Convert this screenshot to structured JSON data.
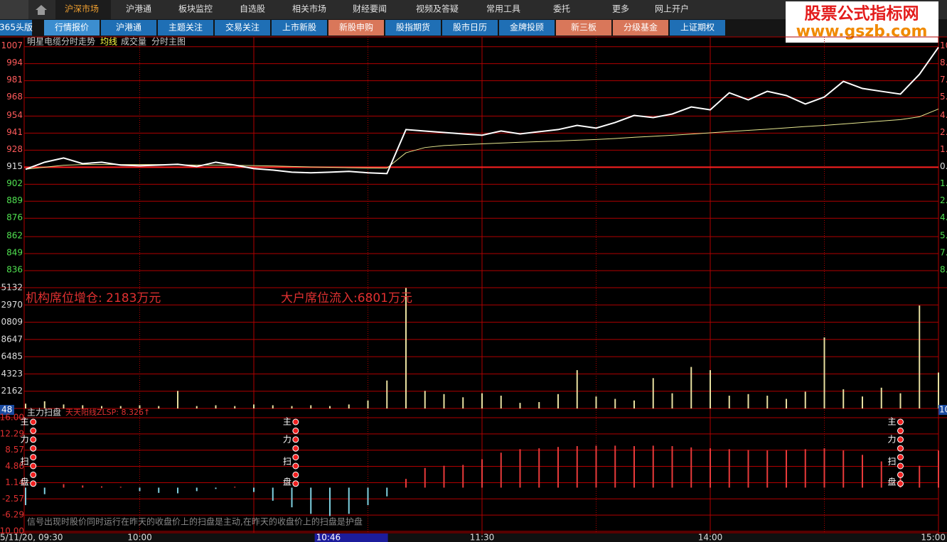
{
  "menu": [
    "沪深市场",
    "沪港通",
    "板块监控",
    "自选股",
    "相关市场",
    "财经要闻",
    "视频及答疑",
    "常用工具",
    "委托",
    "更多",
    "网上开户"
  ],
  "tabs": [
    "365头版",
    "行情报价",
    "沪港通",
    "主题关注",
    "交易关注",
    "上市新股",
    "新股申购",
    "股指期货",
    "股市日历",
    "金牌投顾",
    "新三板",
    "分级基金",
    "上证期权"
  ],
  "logo": {
    "title": "股票公式指标网",
    "url": "www.gszb.com"
  },
  "chart_data": {
    "type": "line",
    "title": "明星电缆分时走势",
    "legend": [
      "均线",
      "成交量",
      "分时主图"
    ],
    "x": [
      "09:30",
      "09:35",
      "09:40",
      "09:45",
      "09:50",
      "09:55",
      "10:00",
      "10:05",
      "10:10",
      "10:15",
      "10:20",
      "10:25",
      "10:30",
      "10:35",
      "10:40",
      "10:45",
      "10:50",
      "10:55",
      "11:00",
      "11:05",
      "11:10",
      "11:15",
      "11:20",
      "11:25",
      "11:30",
      "13:05",
      "13:10",
      "13:15",
      "13:20",
      "13:25",
      "13:30",
      "13:35",
      "13:40",
      "13:45",
      "13:50",
      "13:55",
      "14:00",
      "14:05",
      "14:10",
      "14:15",
      "14:20",
      "14:25",
      "14:30",
      "14:35",
      "14:40",
      "14:45",
      "14:50",
      "14:55",
      "15:00"
    ],
    "xticks": [
      {
        "value": "09:30",
        "label": "5/11/20, 09:30"
      },
      "10:00",
      "11:30",
      "14:00",
      "15:00"
    ],
    "cursor": "10:46",
    "price": {
      "color": "#ffffff",
      "values": [
        913.4,
        918.8,
        922.0,
        917.7,
        918.8,
        916.6,
        916.1,
        916.6,
        917.2,
        915.5,
        918.8,
        916.6,
        913.9,
        912.8,
        911.2,
        910.7,
        911.2,
        911.8,
        910.7,
        910.1,
        943.7,
        942.6,
        941.5,
        940.4,
        939.4,
        942.6,
        940.4,
        942.1,
        943.7,
        946.9,
        944.8,
        949.1,
        954.5,
        952.9,
        955.6,
        961.0,
        958.8,
        971.8,
        966.4,
        972.9,
        969.7,
        963.2,
        968.6,
        980.5,
        975.1,
        972.9,
        970.8,
        985.9,
        1006.5
      ]
    },
    "average": {
      "color": "#e8e890",
      "values": [
        913.4,
        915,
        916.5,
        917,
        917,
        917,
        917,
        917,
        916.8,
        916.6,
        916.6,
        916.5,
        916.2,
        915.9,
        915.5,
        915.2,
        914.9,
        914.6,
        914.4,
        914.3,
        926,
        930,
        931.5,
        932.2,
        932.8,
        933.4,
        934,
        934.5,
        935,
        935.6,
        936.1,
        936.9,
        937.8,
        938.6,
        939.4,
        940.3,
        941.2,
        942.2,
        943.1,
        944,
        945,
        946,
        946.9,
        948,
        949.1,
        950.2,
        951.3,
        953.5,
        959.4
      ]
    },
    "prev_close": 915,
    "ylim": [
      823,
      1009
    ],
    "yticks": [
      1007,
      994,
      981,
      968,
      954,
      941,
      928,
      915,
      902,
      889,
      876,
      862,
      849,
      836
    ],
    "right_labels": [
      "10",
      "8.",
      "7.",
      "5.",
      "4.",
      "2.",
      "1.",
      "0.",
      "1.",
      "2.",
      "4.",
      "5.",
      "7.",
      "8."
    ],
    "volume": {
      "color": "#e8e0a0",
      "values": [
        600,
        900,
        500,
        400,
        300,
        300,
        400,
        300,
        2200,
        300,
        400,
        300,
        500,
        400,
        300,
        400,
        300,
        500,
        1000,
        3500,
        15100,
        2200,
        1800,
        1400,
        1900,
        1600,
        700,
        800,
        1800,
        4800,
        1500,
        1200,
        1000,
        3800,
        1900,
        5200,
        4800,
        1600,
        1800,
        1600,
        1200,
        2100,
        8900,
        2400,
        1500,
        2600,
        1900,
        12900,
        4500
      ],
      "ylim": [
        0,
        15132
      ],
      "yticks": [
        {
          "value": 15132,
          "label": "5132"
        },
        {
          "value": 12970,
          "label": "2970"
        },
        {
          "value": 10809,
          "label": "0809"
        },
        8647,
        6485,
        4323,
        2162
      ],
      "annotations": [
        "机构席位增仓: 2183万元",
        "大户席位流入:6801万元"
      ]
    },
    "indicator": {
      "name": "主力扫盘",
      "label": "天天阳线ZLSP: 8.326↑",
      "up_color": "#e83a3a",
      "down_color": "#7ed0e0",
      "values": [
        -4,
        -1.5,
        0.8,
        0.5,
        0.3,
        0.2,
        -0.8,
        -1.2,
        -1.3,
        -0.8,
        -0.3,
        0.2,
        -1.0,
        -3,
        -4.5,
        -6,
        -6.5,
        -6,
        -4,
        -2,
        2,
        4.5,
        5,
        5.2,
        6.5,
        8,
        8.8,
        9,
        9.3,
        9.5,
        9.6,
        9.6,
        9.5,
        9.6,
        9.5,
        9.2,
        9,
        8.8,
        8.6,
        8.5,
        8.6,
        8.8,
        9,
        8.5,
        7.5,
        6,
        3.5,
        5,
        8.5
      ],
      "ylim": [
        -10,
        16
      ],
      "yticks": [
        {
          "value": 16,
          "label": "16.00"
        },
        12.29,
        8.57,
        4.86,
        1.14,
        -2.57,
        -6.29,
        {
          "value": -10,
          "label": "-10.00"
        }
      ],
      "signals": [
        "09:32",
        "10:41",
        "14:50"
      ],
      "signal_label": [
        "主",
        "力",
        "扫",
        "盘"
      ]
    },
    "badges": {
      "left": "48",
      "right": "10"
    },
    "bottom_note": "信号出现时股价同时运行在昨天的收盘价上的扫盘是主动,在昨天的收盘价上的扫盘是护盘"
  }
}
